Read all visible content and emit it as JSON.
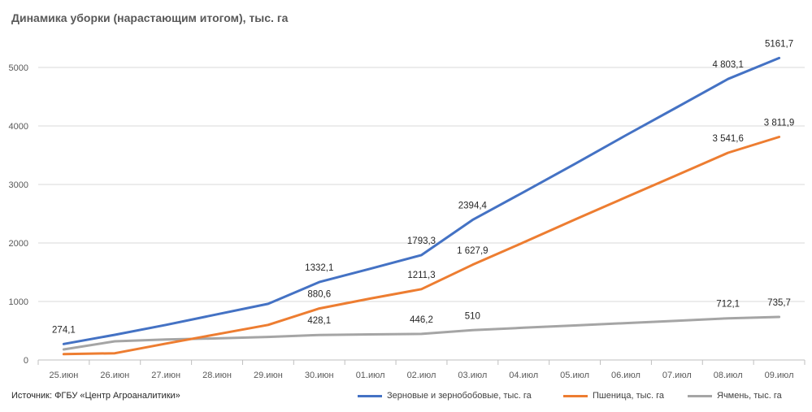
{
  "source": "Источник: ФГБУ «Центр Агроаналитики»",
  "chart_data": {
    "type": "line",
    "title": "Динамика уборки (нарастающим итогом), тыс. га",
    "xlabel": "",
    "ylabel": "",
    "ylim": [
      0,
      5500
    ],
    "yticks": [
      0,
      1000,
      2000,
      3000,
      4000,
      5000
    ],
    "yticklabels": [
      "0",
      "1000",
      "2000",
      "3000",
      "4000",
      "5000"
    ],
    "categories": [
      "25.июн",
      "26.июн",
      "27.июн",
      "28.июн",
      "29.июн",
      "30.июн",
      "01.июл",
      "02.июл",
      "03.июл",
      "04.июл",
      "05.июл",
      "06.июл",
      "07.июл",
      "08.июл",
      "09.июл"
    ],
    "grid": true,
    "legend": "bottom",
    "series": [
      {
        "name": "Зерновые и зернобобовые, тыс. га",
        "color": "#4472C4",
        "values": [
          274.1,
          430,
          600,
          780,
          960,
          1332.1,
          1560,
          1793.3,
          2394.4,
          2870,
          3350,
          3840,
          4320,
          4803.1,
          5161.7
        ],
        "labels": [
          "274,1",
          "",
          "",
          "",
          "",
          "1332,1",
          "",
          "1793,3",
          "2394,4",
          "",
          "",
          "",
          "",
          "4 803,1",
          "5161,7"
        ]
      },
      {
        "name": "Пшеница, тыс. га",
        "color": "#ED7D31",
        "values": [
          100,
          115,
          280,
          440,
          600,
          880.6,
          1050,
          1211.3,
          1627.9,
          2010,
          2400,
          2780,
          3160,
          3541.6,
          3811.9
        ],
        "labels": [
          "",
          "",
          "",
          "",
          "",
          "880,6",
          "",
          "1211,3",
          "1 627,9",
          "",
          "",
          "",
          "",
          "3 541,6",
          "3 811,9"
        ]
      },
      {
        "name": "Ячмень, тыс. га",
        "color": "#A5A5A5",
        "values": [
          180,
          320,
          350,
          370,
          395,
          428.1,
          438,
          446.2,
          510,
          552,
          590,
          630,
          670,
          712.1,
          735.7
        ],
        "labels": [
          "",
          "",
          "",
          "",
          "",
          "428,1",
          "",
          "446,2",
          "510",
          "",
          "",
          "",
          "",
          "712,1",
          "735,7"
        ]
      }
    ]
  }
}
